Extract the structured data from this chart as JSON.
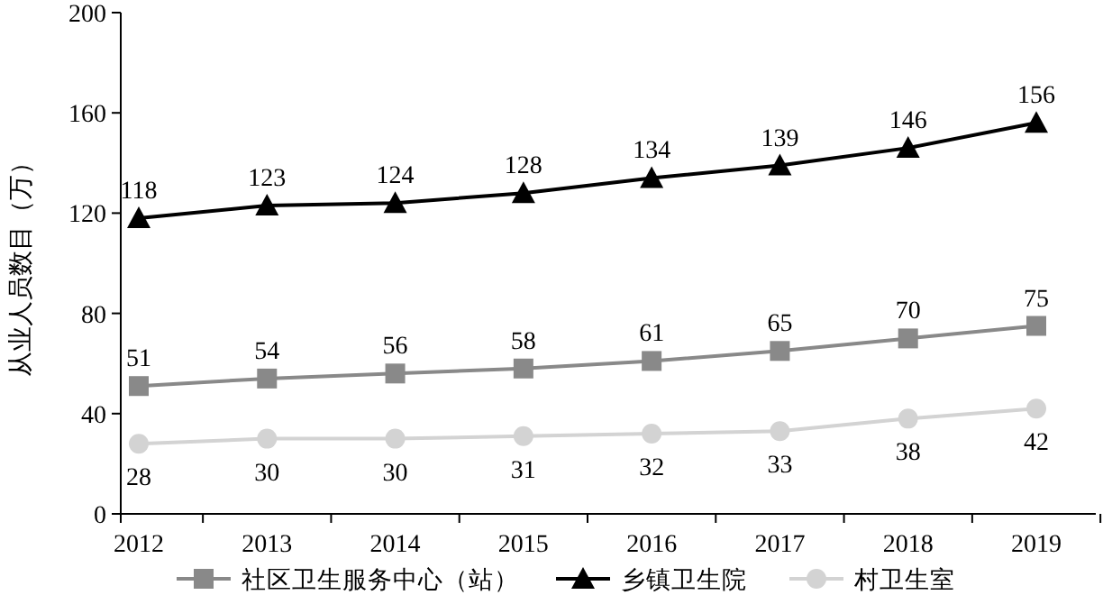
{
  "chart_data": {
    "type": "line",
    "categories": [
      "2012",
      "2013",
      "2014",
      "2015",
      "2016",
      "2017",
      "2018",
      "2019"
    ],
    "ylabel": "从业人员数目（万）",
    "ylim": [
      0,
      200
    ],
    "yticks": [
      0,
      40,
      80,
      120,
      160,
      200
    ],
    "data_labels": true,
    "legend": "bottom",
    "grid": false,
    "line_style": "solid",
    "series": [
      {
        "name": "社区卫生服务中心（站）",
        "color": "#898989",
        "marker": "square",
        "values": [
          51,
          54,
          56,
          58,
          61,
          65,
          70,
          75
        ]
      },
      {
        "name": "乡镇卫生院",
        "color": "#000000",
        "marker": "triangle",
        "values": [
          118,
          123,
          124,
          128,
          134,
          139,
          146,
          156
        ]
      },
      {
        "name": "村卫生室",
        "color": "#d3d3d3",
        "marker": "circle",
        "values": [
          28,
          30,
          30,
          31,
          32,
          33,
          38,
          42
        ]
      }
    ]
  }
}
